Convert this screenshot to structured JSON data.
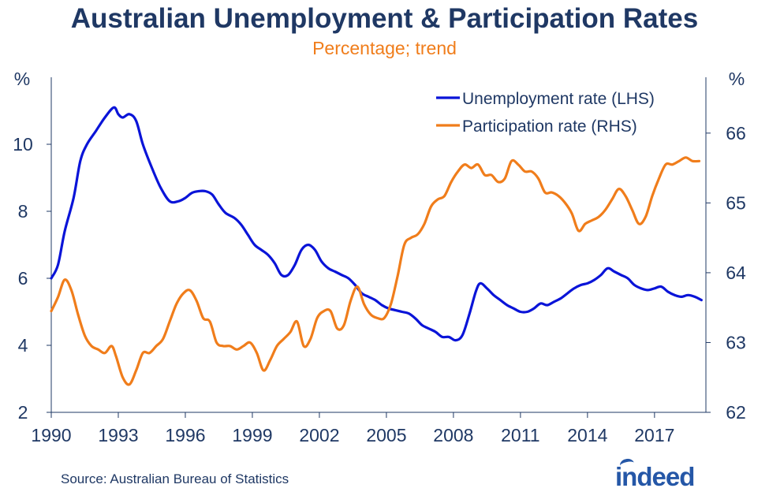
{
  "title": "Australian Unemployment & Participation Rates",
  "subtitle": "Percentage; trend",
  "source": "Source: Australian Bureau of Statistics",
  "logo_text": "indeed",
  "colors": {
    "title": "#1f3864",
    "subtitle": "#f07d1b",
    "unemployment": "#0a14d8",
    "participation": "#f07d1b",
    "axis": "#1f3864",
    "logo": "#2557a7"
  },
  "chart_data": {
    "type": "line",
    "title": "Australian Unemployment & Participation Rates",
    "subtitle": "Percentage; trend",
    "x_ticks": [
      "1990",
      "1993",
      "1996",
      "1999",
      "2002",
      "2005",
      "2008",
      "2011",
      "2014",
      "2017"
    ],
    "x_range": [
      1990,
      2019.3
    ],
    "left_axis": {
      "unit": "%",
      "range": [
        2,
        12
      ],
      "ticks": [
        "2",
        "4",
        "6",
        "8",
        "10"
      ]
    },
    "right_axis": {
      "unit": "%",
      "range": [
        62,
        66.8
      ],
      "ticks": [
        "62",
        "63",
        "64",
        "65",
        "66"
      ]
    },
    "legend": {
      "position": "top-right"
    },
    "grid": false,
    "series": [
      {
        "name": "Unemployment rate (LHS)",
        "axis": "left",
        "x": [
          1990.0,
          1990.3,
          1990.6,
          1991.0,
          1991.3,
          1991.6,
          1992.0,
          1992.4,
          1992.8,
          1993.0,
          1993.2,
          1993.5,
          1993.8,
          1994.1,
          1994.5,
          1994.9,
          1995.3,
          1995.7,
          1996.0,
          1996.3,
          1996.6,
          1996.9,
          1997.2,
          1997.5,
          1997.8,
          1998.2,
          1998.5,
          1998.8,
          1999.1,
          1999.4,
          1999.7,
          2000.0,
          2000.3,
          2000.6,
          2000.9,
          2001.2,
          2001.5,
          2001.8,
          2002.1,
          2002.4,
          2002.7,
          2003.0,
          2003.3,
          2003.6,
          2003.9,
          2004.2,
          2004.5,
          2004.8,
          2005.1,
          2005.4,
          2005.7,
          2006.0,
          2006.3,
          2006.6,
          2006.9,
          2007.2,
          2007.5,
          2007.8,
          2008.1,
          2008.4,
          2008.7,
          2009.0,
          2009.2,
          2009.5,
          2009.8,
          2010.1,
          2010.4,
          2010.7,
          2011.0,
          2011.3,
          2011.6,
          2011.9,
          2012.2,
          2012.5,
          2012.8,
          2013.1,
          2013.4,
          2013.7,
          2014.0,
          2014.3,
          2014.6,
          2014.9,
          2015.2,
          2015.5,
          2015.8,
          2016.1,
          2016.4,
          2016.7,
          2017.0,
          2017.3,
          2017.6,
          2017.9,
          2018.2,
          2018.5,
          2018.8,
          2019.1
        ],
        "values": [
          6.0,
          6.4,
          7.4,
          8.4,
          9.5,
          10.0,
          10.4,
          10.8,
          11.1,
          10.9,
          10.8,
          10.9,
          10.7,
          10.0,
          9.3,
          8.7,
          8.3,
          8.3,
          8.4,
          8.55,
          8.6,
          8.6,
          8.5,
          8.2,
          7.95,
          7.8,
          7.6,
          7.3,
          7.0,
          6.85,
          6.7,
          6.45,
          6.1,
          6.1,
          6.4,
          6.85,
          7.0,
          6.85,
          6.5,
          6.3,
          6.2,
          6.1,
          6.0,
          5.8,
          5.55,
          5.45,
          5.35,
          5.2,
          5.1,
          5.05,
          5.0,
          4.95,
          4.8,
          4.6,
          4.5,
          4.4,
          4.25,
          4.25,
          4.15,
          4.3,
          4.9,
          5.6,
          5.85,
          5.7,
          5.5,
          5.35,
          5.2,
          5.1,
          5.0,
          5.0,
          5.1,
          5.25,
          5.2,
          5.3,
          5.4,
          5.55,
          5.7,
          5.8,
          5.85,
          5.95,
          6.1,
          6.3,
          6.2,
          6.1,
          6.0,
          5.8,
          5.7,
          5.65,
          5.7,
          5.75,
          5.6,
          5.5,
          5.45,
          5.5,
          5.45,
          5.35
        ]
      },
      {
        "name": "Participation rate (RHS)",
        "axis": "right",
        "x": [
          1990.0,
          1990.3,
          1990.6,
          1990.9,
          1991.2,
          1991.5,
          1991.8,
          1992.1,
          1992.4,
          1992.7,
          1992.9,
          1993.2,
          1993.5,
          1993.8,
          1994.1,
          1994.4,
          1994.7,
          1995.0,
          1995.3,
          1995.6,
          1995.9,
          1996.2,
          1996.5,
          1996.8,
          1997.1,
          1997.4,
          1997.7,
          1998.0,
          1998.3,
          1998.6,
          1998.9,
          1999.2,
          1999.5,
          1999.8,
          2000.1,
          2000.4,
          2000.7,
          2001.0,
          2001.3,
          2001.6,
          2001.9,
          2002.2,
          2002.5,
          2002.8,
          2003.1,
          2003.4,
          2003.7,
          2004.0,
          2004.3,
          2004.6,
          2004.9,
          2005.2,
          2005.5,
          2005.8,
          2006.1,
          2006.4,
          2006.7,
          2007.0,
          2007.3,
          2007.6,
          2007.9,
          2008.2,
          2008.5,
          2008.8,
          2009.1,
          2009.4,
          2009.7,
          2010.0,
          2010.3,
          2010.6,
          2010.9,
          2011.2,
          2011.5,
          2011.8,
          2012.1,
          2012.4,
          2012.7,
          2013.0,
          2013.3,
          2013.6,
          2013.9,
          2014.2,
          2014.5,
          2014.8,
          2015.1,
          2015.4,
          2015.7,
          2016.0,
          2016.3,
          2016.6,
          2016.9,
          2017.2,
          2017.5,
          2017.8,
          2018.1,
          2018.4,
          2018.7,
          2019.0
        ],
        "values": [
          63.45,
          63.65,
          63.9,
          63.75,
          63.4,
          63.1,
          62.95,
          62.9,
          62.85,
          62.95,
          62.8,
          62.5,
          62.4,
          62.6,
          62.85,
          62.85,
          62.95,
          63.05,
          63.3,
          63.55,
          63.7,
          63.75,
          63.6,
          63.35,
          63.3,
          63.0,
          62.95,
          62.95,
          62.9,
          62.95,
          63.0,
          62.85,
          62.6,
          62.75,
          62.95,
          63.05,
          63.15,
          63.3,
          62.95,
          63.05,
          63.35,
          63.45,
          63.45,
          63.2,
          63.25,
          63.6,
          63.8,
          63.55,
          63.4,
          63.35,
          63.35,
          63.55,
          63.95,
          64.4,
          64.5,
          64.55,
          64.7,
          64.95,
          65.05,
          65.1,
          65.3,
          65.45,
          65.55,
          65.5,
          65.55,
          65.4,
          65.4,
          65.3,
          65.35,
          65.6,
          65.55,
          65.45,
          65.45,
          65.35,
          65.15,
          65.15,
          65.1,
          65.0,
          64.85,
          64.6,
          64.7,
          64.75,
          64.8,
          64.9,
          65.05,
          65.2,
          65.1,
          64.9,
          64.7,
          64.8,
          65.1,
          65.35,
          65.55,
          65.55,
          65.6,
          65.65,
          65.6,
          65.6
        ]
      }
    ]
  }
}
